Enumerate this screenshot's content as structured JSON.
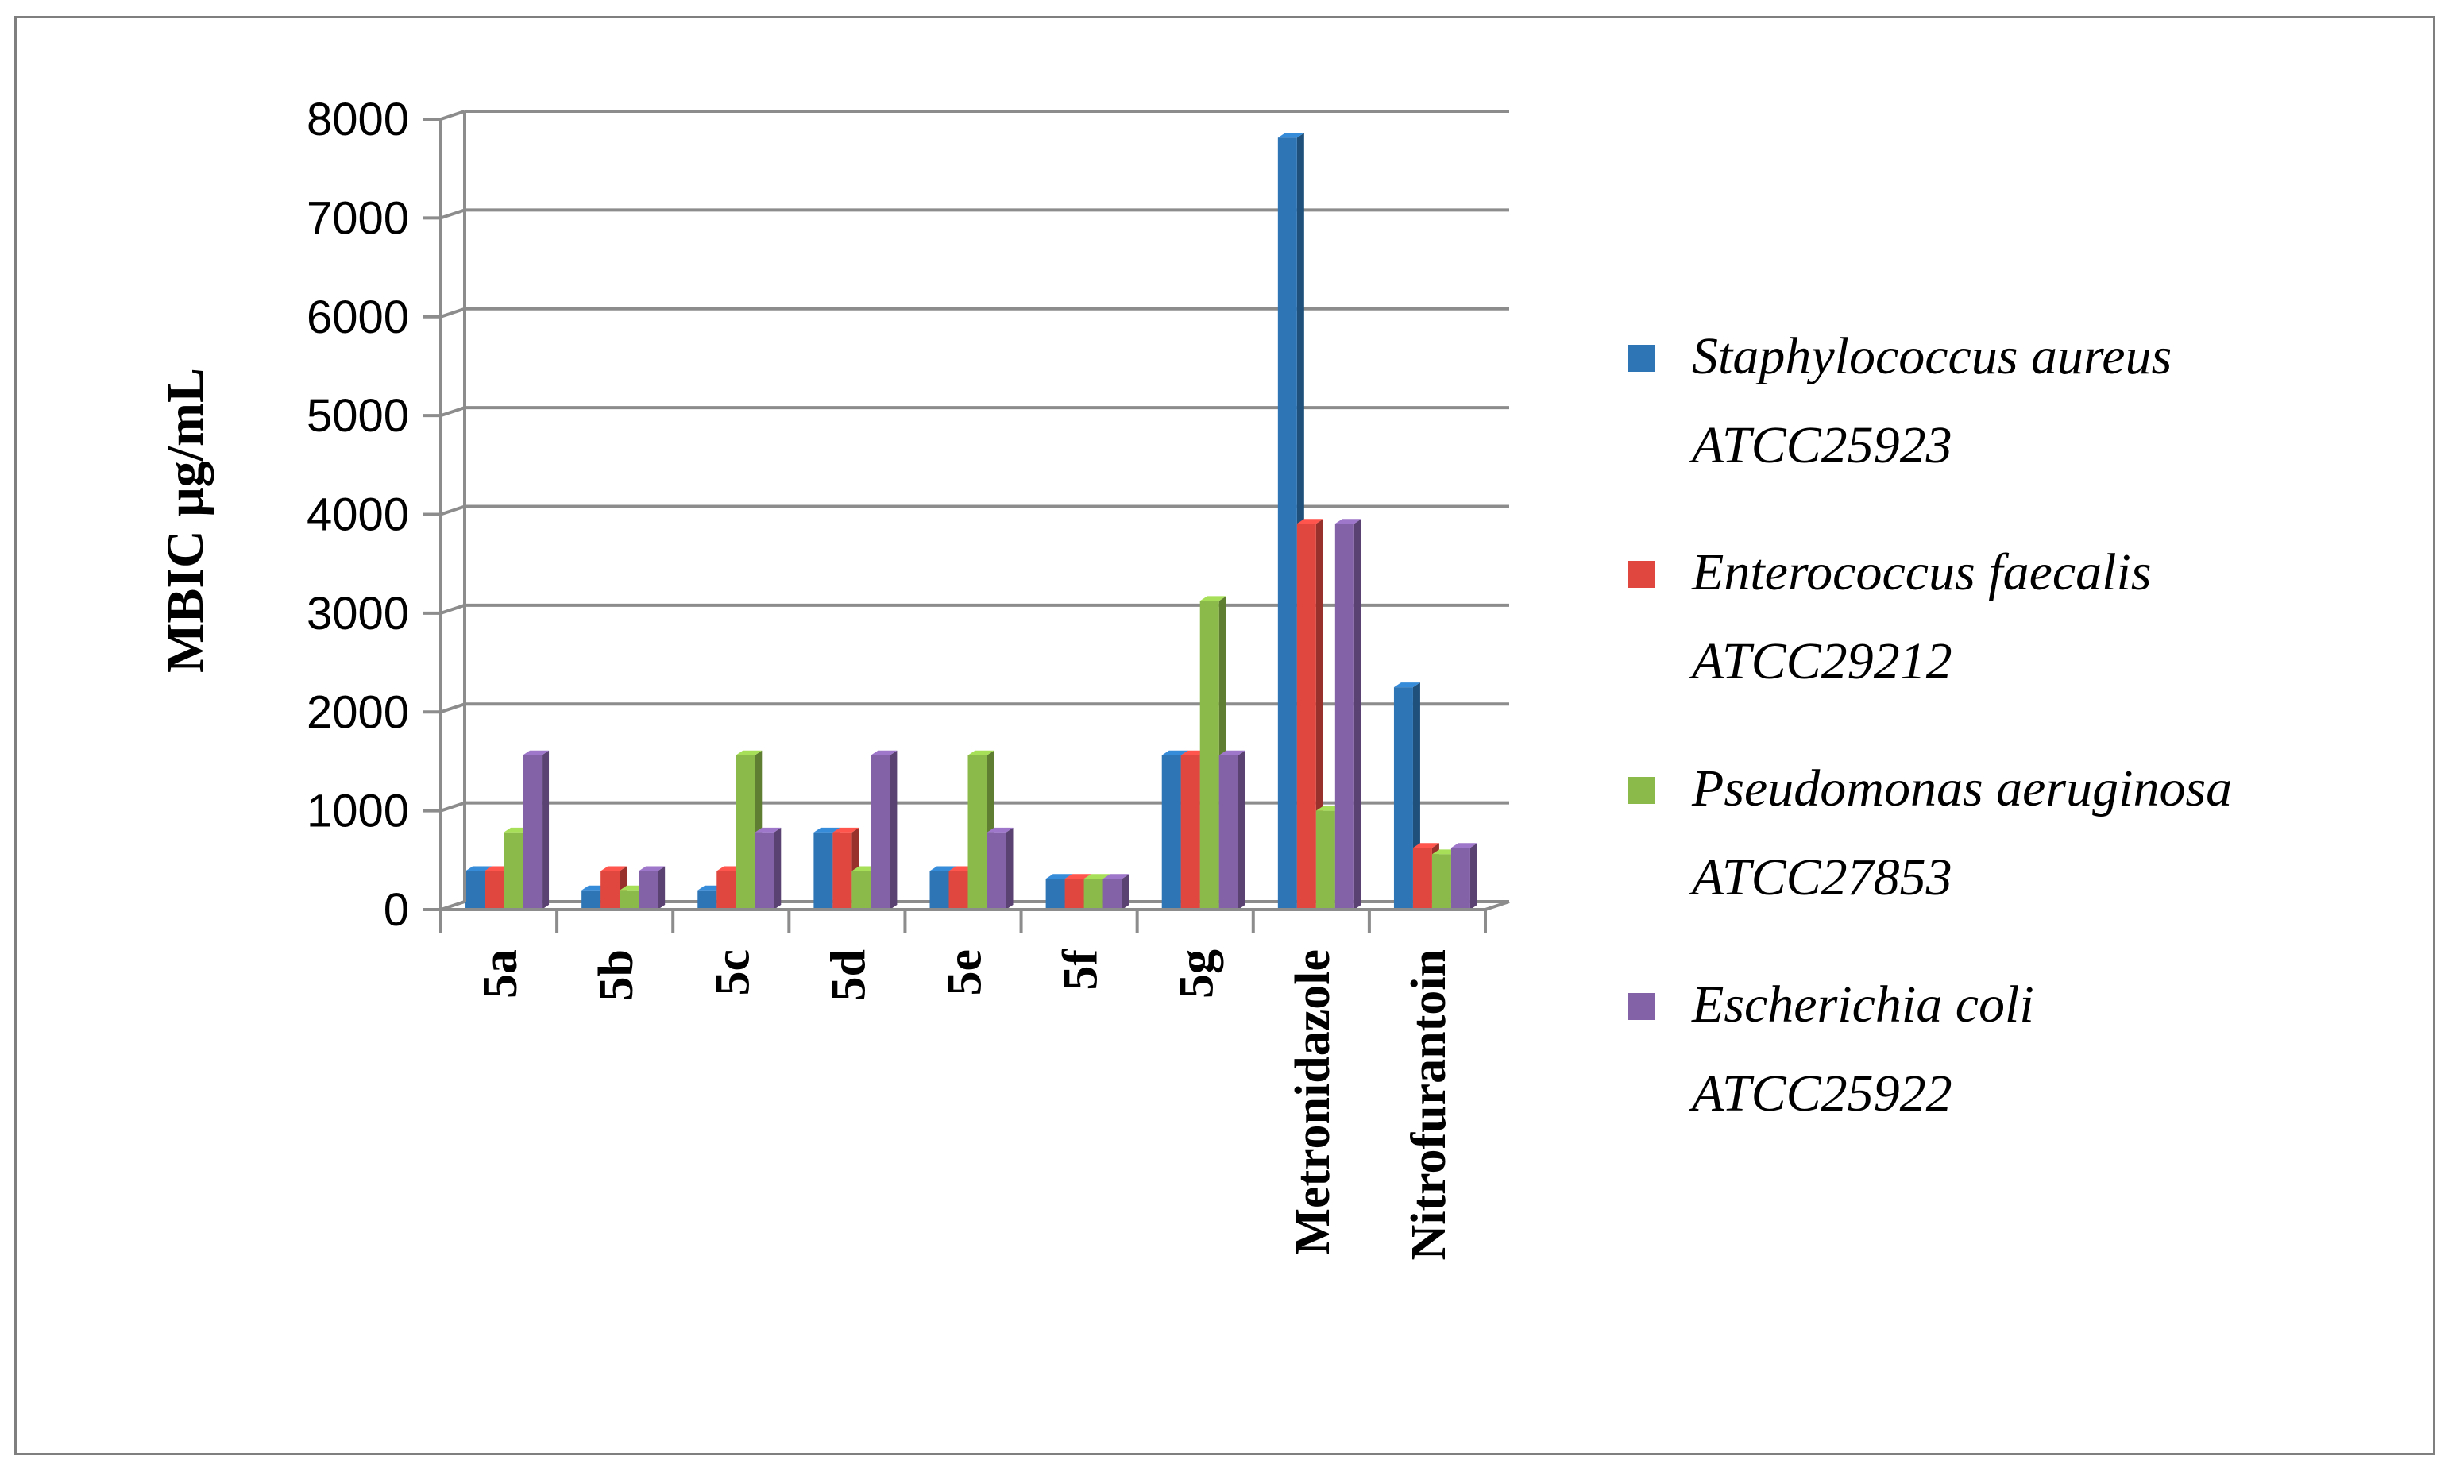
{
  "chart_data": {
    "type": "bar",
    "title": "",
    "xlabel": "",
    "ylabel": "MBIC μg/mL",
    "ylim": [
      0,
      8000
    ],
    "yticks": [
      0,
      1000,
      2000,
      3000,
      4000,
      5000,
      6000,
      7000,
      8000
    ],
    "grid": true,
    "legend_position": "right",
    "categories": [
      "5a",
      "5b",
      "5c",
      "5d",
      "5e",
      "5f",
      "5g",
      "Metronidazole",
      "Nitrofurantoin"
    ],
    "series": [
      {
        "name": "Staphylococcus aureus",
        "strain": "ATCC25923",
        "color": "#2e75b6",
        "values": [
          390,
          195,
          195,
          781,
          390,
          312,
          1562,
          7812,
          2250
        ]
      },
      {
        "name": "Enterococcus faecalis",
        "strain": "ATCC29212",
        "color": "#e0473f",
        "values": [
          390,
          390,
          390,
          781,
          390,
          312,
          1562,
          3906,
          625
        ]
      },
      {
        "name": "Pseudomonas aeruginosa",
        "strain": "ATCC27853",
        "color": "#8cba4a",
        "values": [
          781,
          195,
          1562,
          390,
          1562,
          312,
          3125,
          1000,
          560
        ]
      },
      {
        "name": "Escherichia coli",
        "strain": "ATCC25922",
        "color": "#8462a8",
        "values": [
          1562,
          390,
          781,
          1562,
          781,
          312,
          1562,
          3906,
          625
        ]
      }
    ]
  }
}
